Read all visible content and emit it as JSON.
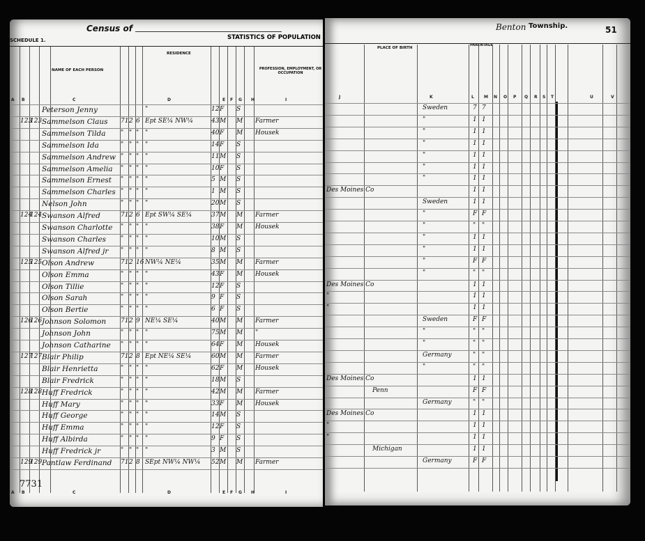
{
  "header": {
    "census_title": "Census of",
    "schedule": "SCHEDULE 1.",
    "statistics": "STATISTICS OF POPULATION",
    "township_handwritten": "Benton",
    "township_label": "Township.",
    "page_number": "51"
  },
  "columns_left": {
    "name": "NAME OF EACH PERSON",
    "residence": "RESIDENCE",
    "profession": "PROFESSION, EMPLOYMENT, OR OCCUPATION",
    "letters": [
      "A",
      "B",
      "C",
      "D",
      "E",
      "F",
      "G",
      "H",
      "I"
    ]
  },
  "columns_right": {
    "place_of_birth": "PLACE OF BIRTH",
    "parentage": "PARENTAGE",
    "letters": [
      "J",
      "K",
      "L",
      "M",
      "N",
      "O",
      "P",
      "Q",
      "R",
      "S",
      "T",
      "U",
      "V"
    ]
  },
  "rows": [
    {
      "dw": "",
      "fam": "",
      "name": "Peterson Jenny",
      "twp": "",
      "rng": "",
      "sec": "",
      "res": "\"",
      "age": "12",
      "sex": "F",
      "mar": "S",
      "occ": "",
      "county": "",
      "state": "",
      "country": "Sweden",
      "father": "7",
      "mother": "7"
    },
    {
      "dw": "123",
      "fam": "123",
      "name": "Sammelson Claus",
      "twp": "71",
      "rng": "2",
      "sec": "6",
      "res": "Ept SE¼ NW¼",
      "age": "43",
      "sex": "M",
      "mar": "M",
      "occ": "Farmer",
      "county": "",
      "state": "",
      "country": "\"",
      "father": "1",
      "mother": "1"
    },
    {
      "dw": "",
      "fam": "",
      "name": "Sammelson Tilda",
      "twp": "\"",
      "rng": "\"",
      "sec": "\"",
      "res": "\"",
      "age": "40",
      "sex": "F",
      "mar": "M",
      "occ": "Housek",
      "county": "",
      "state": "",
      "country": "\"",
      "father": "1",
      "mother": "1"
    },
    {
      "dw": "",
      "fam": "",
      "name": "Sammelson Ida",
      "twp": "\"",
      "rng": "\"",
      "sec": "\"",
      "res": "\"",
      "age": "14",
      "sex": "F",
      "mar": "S",
      "occ": "",
      "county": "",
      "state": "",
      "country": "\"",
      "father": "1",
      "mother": "1"
    },
    {
      "dw": "",
      "fam": "",
      "name": "Sammelson Andrew",
      "twp": "\"",
      "rng": "\"",
      "sec": "\"",
      "res": "\"",
      "age": "11",
      "sex": "M",
      "mar": "S",
      "occ": "",
      "county": "",
      "state": "",
      "country": "\"",
      "father": "1",
      "mother": "1"
    },
    {
      "dw": "",
      "fam": "",
      "name": "Sammelson Amelia",
      "twp": "\"",
      "rng": "\"",
      "sec": "\"",
      "res": "\"",
      "age": "10",
      "sex": "F",
      "mar": "S",
      "occ": "",
      "county": "",
      "state": "",
      "country": "\"",
      "father": "1",
      "mother": "1"
    },
    {
      "dw": "",
      "fam": "",
      "name": "Sammelson Ernest",
      "twp": "\"",
      "rng": "\"",
      "sec": "\"",
      "res": "\"",
      "age": "5",
      "sex": "M",
      "mar": "S",
      "occ": "",
      "county": "",
      "state": "",
      "country": "\"",
      "father": "1",
      "mother": "1"
    },
    {
      "dw": "",
      "fam": "",
      "name": "Sammelson Charles",
      "twp": "\"",
      "rng": "\"",
      "sec": "\"",
      "res": "\"",
      "age": "1",
      "sex": "M",
      "mar": "S",
      "occ": "",
      "county": "Des Moines Co",
      "state": "",
      "country": "",
      "father": "1",
      "mother": "1"
    },
    {
      "dw": "",
      "fam": "",
      "name": "Nelson John",
      "twp": "\"",
      "rng": "\"",
      "sec": "\"",
      "res": "\"",
      "age": "20",
      "sex": "M",
      "mar": "S",
      "occ": "",
      "county": "",
      "state": "",
      "country": "Sweden",
      "father": "1",
      "mother": "1"
    },
    {
      "dw": "124",
      "fam": "124",
      "name": "Swanson Alfred",
      "twp": "71",
      "rng": "2",
      "sec": "6",
      "res": "Ept SW¼ SE¼",
      "age": "37",
      "sex": "M",
      "mar": "M",
      "occ": "Farmer",
      "county": "",
      "state": "",
      "country": "\"",
      "father": "F",
      "mother": "F"
    },
    {
      "dw": "",
      "fam": "",
      "name": "Swanson Charlotte",
      "twp": "\"",
      "rng": "\"",
      "sec": "\"",
      "res": "\"",
      "age": "38",
      "sex": "F",
      "mar": "M",
      "occ": "Housek",
      "county": "",
      "state": "",
      "country": "\"",
      "father": "\"",
      "mother": "\""
    },
    {
      "dw": "",
      "fam": "",
      "name": "Swanson Charles",
      "twp": "\"",
      "rng": "\"",
      "sec": "\"",
      "res": "\"",
      "age": "10",
      "sex": "M",
      "mar": "S",
      "occ": "",
      "county": "",
      "state": "",
      "country": "\"",
      "father": "1",
      "mother": "1"
    },
    {
      "dw": "",
      "fam": "",
      "name": "Swanson Alfred jr",
      "twp": "\"",
      "rng": "\"",
      "sec": "\"",
      "res": "\"",
      "age": "8",
      "sex": "M",
      "mar": "S",
      "occ": "",
      "county": "",
      "state": "",
      "country": "\"",
      "father": "1",
      "mother": "1"
    },
    {
      "dw": "125",
      "fam": "125",
      "name": "Olson Andrew",
      "twp": "71",
      "rng": "2",
      "sec": "16",
      "res": "NW¼ NE¼",
      "age": "35",
      "sex": "M",
      "mar": "M",
      "occ": "Farmer",
      "county": "",
      "state": "",
      "country": "\"",
      "father": "F",
      "mother": "F"
    },
    {
      "dw": "",
      "fam": "",
      "name": "Olson Emma",
      "twp": "\"",
      "rng": "\"",
      "sec": "\"",
      "res": "\"",
      "age": "43",
      "sex": "F",
      "mar": "M",
      "occ": "Housek",
      "county": "",
      "state": "",
      "country": "\"",
      "father": "\"",
      "mother": "\""
    },
    {
      "dw": "",
      "fam": "",
      "name": "Olson Tillie",
      "twp": "\"",
      "rng": "\"",
      "sec": "\"",
      "res": "\"",
      "age": "12",
      "sex": "F",
      "mar": "S",
      "occ": "",
      "county": "Des Moines Co",
      "state": "",
      "country": "",
      "father": "1",
      "mother": "1"
    },
    {
      "dw": "",
      "fam": "",
      "name": "Olson Sarah",
      "twp": "\"",
      "rng": "\"",
      "sec": "\"",
      "res": "\"",
      "age": "9",
      "sex": "F",
      "mar": "S",
      "occ": "",
      "county": "\"",
      "state": "",
      "country": "",
      "father": "1",
      "mother": "1"
    },
    {
      "dw": "",
      "fam": "",
      "name": "Olson Bertie",
      "twp": "\"",
      "rng": "\"",
      "sec": "\"",
      "res": "\"",
      "age": "6",
      "sex": "F",
      "mar": "S",
      "occ": "",
      "county": "\"",
      "state": "",
      "country": "",
      "father": "1",
      "mother": "1"
    },
    {
      "dw": "126",
      "fam": "126",
      "name": "Johnson Solomon",
      "twp": "71",
      "rng": "2",
      "sec": "9",
      "res": "NE¼ SE¼",
      "age": "40",
      "sex": "M",
      "mar": "M",
      "occ": "Farmer",
      "county": "",
      "state": "",
      "country": "Sweden",
      "father": "F",
      "mother": "F"
    },
    {
      "dw": "",
      "fam": "",
      "name": "Johnson John",
      "twp": "\"",
      "rng": "\"",
      "sec": "\"",
      "res": "\"",
      "age": "75",
      "sex": "M",
      "mar": "M",
      "occ": "\"",
      "county": "",
      "state": "",
      "country": "\"",
      "father": "\"",
      "mother": "\""
    },
    {
      "dw": "",
      "fam": "",
      "name": "Johnson Catharine",
      "twp": "\"",
      "rng": "\"",
      "sec": "\"",
      "res": "\"",
      "age": "64",
      "sex": "F",
      "mar": "M",
      "occ": "Housek",
      "county": "",
      "state": "",
      "country": "\"",
      "father": "\"",
      "mother": "\""
    },
    {
      "dw": "127",
      "fam": "127",
      "name": "Blair Philip",
      "twp": "71",
      "rng": "2",
      "sec": "8",
      "res": "Ept NE¼ SE¼",
      "age": "60",
      "sex": "M",
      "mar": "M",
      "occ": "Farmer",
      "county": "",
      "state": "",
      "country": "Germany",
      "father": "\"",
      "mother": "\""
    },
    {
      "dw": "",
      "fam": "",
      "name": "Blair Henrietta",
      "twp": "\"",
      "rng": "\"",
      "sec": "\"",
      "res": "\"",
      "age": "62",
      "sex": "F",
      "mar": "M",
      "occ": "Housek",
      "county": "",
      "state": "",
      "country": "\"",
      "father": "\"",
      "mother": "\""
    },
    {
      "dw": "",
      "fam": "",
      "name": "Blair Fredrick",
      "twp": "\"",
      "rng": "\"",
      "sec": "\"",
      "res": "\"",
      "age": "18",
      "sex": "M",
      "mar": "S",
      "occ": "",
      "county": "Des Moines Co",
      "state": "",
      "country": "",
      "father": "1",
      "mother": "1"
    },
    {
      "dw": "128",
      "fam": "128",
      "name": "Huff Fredrick",
      "twp": "\"",
      "rng": "\"",
      "sec": "\"",
      "res": "\"",
      "age": "42",
      "sex": "M",
      "mar": "M",
      "occ": "Farmer",
      "county": "",
      "state": "Penn",
      "country": "",
      "father": "F",
      "mother": "F"
    },
    {
      "dw": "",
      "fam": "",
      "name": "Huff Mary",
      "twp": "\"",
      "rng": "\"",
      "sec": "\"",
      "res": "\"",
      "age": "33",
      "sex": "F",
      "mar": "M",
      "occ": "Housek",
      "county": "",
      "state": "",
      "country": "Germany",
      "father": "\"",
      "mother": "\""
    },
    {
      "dw": "",
      "fam": "",
      "name": "Huff George",
      "twp": "\"",
      "rng": "\"",
      "sec": "\"",
      "res": "\"",
      "age": "14",
      "sex": "M",
      "mar": "S",
      "occ": "",
      "county": "Des Moines Co",
      "state": "",
      "country": "",
      "father": "1",
      "mother": "1"
    },
    {
      "dw": "",
      "fam": "",
      "name": "Huff Emma",
      "twp": "\"",
      "rng": "\"",
      "sec": "\"",
      "res": "\"",
      "age": "12",
      "sex": "F",
      "mar": "S",
      "occ": "",
      "county": "\"",
      "state": "",
      "country": "",
      "father": "1",
      "mother": "1"
    },
    {
      "dw": "",
      "fam": "",
      "name": "Huff Albirda",
      "twp": "\"",
      "rng": "\"",
      "sec": "\"",
      "res": "\"",
      "age": "9",
      "sex": "F",
      "mar": "S",
      "occ": "",
      "county": "\"",
      "state": "",
      "country": "",
      "father": "1",
      "mother": "1"
    },
    {
      "dw": "",
      "fam": "",
      "name": "Huff Fredrick jr",
      "twp": "\"",
      "rng": "\"",
      "sec": "\"",
      "res": "\"",
      "age": "3",
      "sex": "M",
      "mar": "S",
      "occ": "",
      "county": "",
      "state": "Michigan",
      "country": "",
      "father": "1",
      "mother": "1"
    },
    {
      "dw": "129",
      "fam": "129",
      "name": "Pantlaw Ferdinand",
      "twp": "71",
      "rng": "2",
      "sec": "8",
      "res": "SEpt NW¼ NW¼",
      "age": "52",
      "sex": "M",
      "mar": "M",
      "occ": "Farmer",
      "county": "",
      "state": "",
      "country": "Germany",
      "father": "F",
      "mother": "F"
    }
  ],
  "footer": {
    "stamp_number": "7731"
  }
}
